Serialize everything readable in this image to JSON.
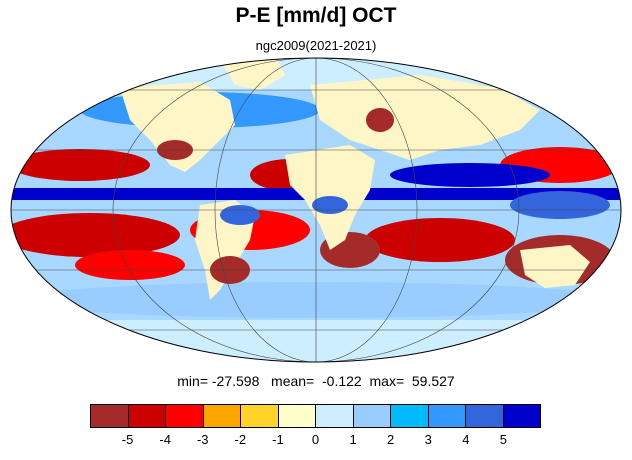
{
  "header": {
    "title": "P-E [mm/d] OCT",
    "subtitle": "ngc2009(2021-2021)"
  },
  "stats": {
    "text": "min= -27.598   mean=  -0.122  max=  59.527"
  },
  "colorbar": {
    "colors": [
      "#a52a2a",
      "#cd0000",
      "#ff0000",
      "#ffa500",
      "#ffd42a",
      "#ffffcc",
      "#cdeeff",
      "#99ccff",
      "#00bbff",
      "#3399ff",
      "#3366dd",
      "#0000cd"
    ],
    "tick_labels": [
      "-5",
      "-4",
      "-3",
      "-2",
      "-1",
      "0",
      "1",
      "2",
      "3",
      "4",
      "5"
    ]
  },
  "map": {
    "ocean_color": "#a8d8ff",
    "land_color": "#fff6c8"
  }
}
